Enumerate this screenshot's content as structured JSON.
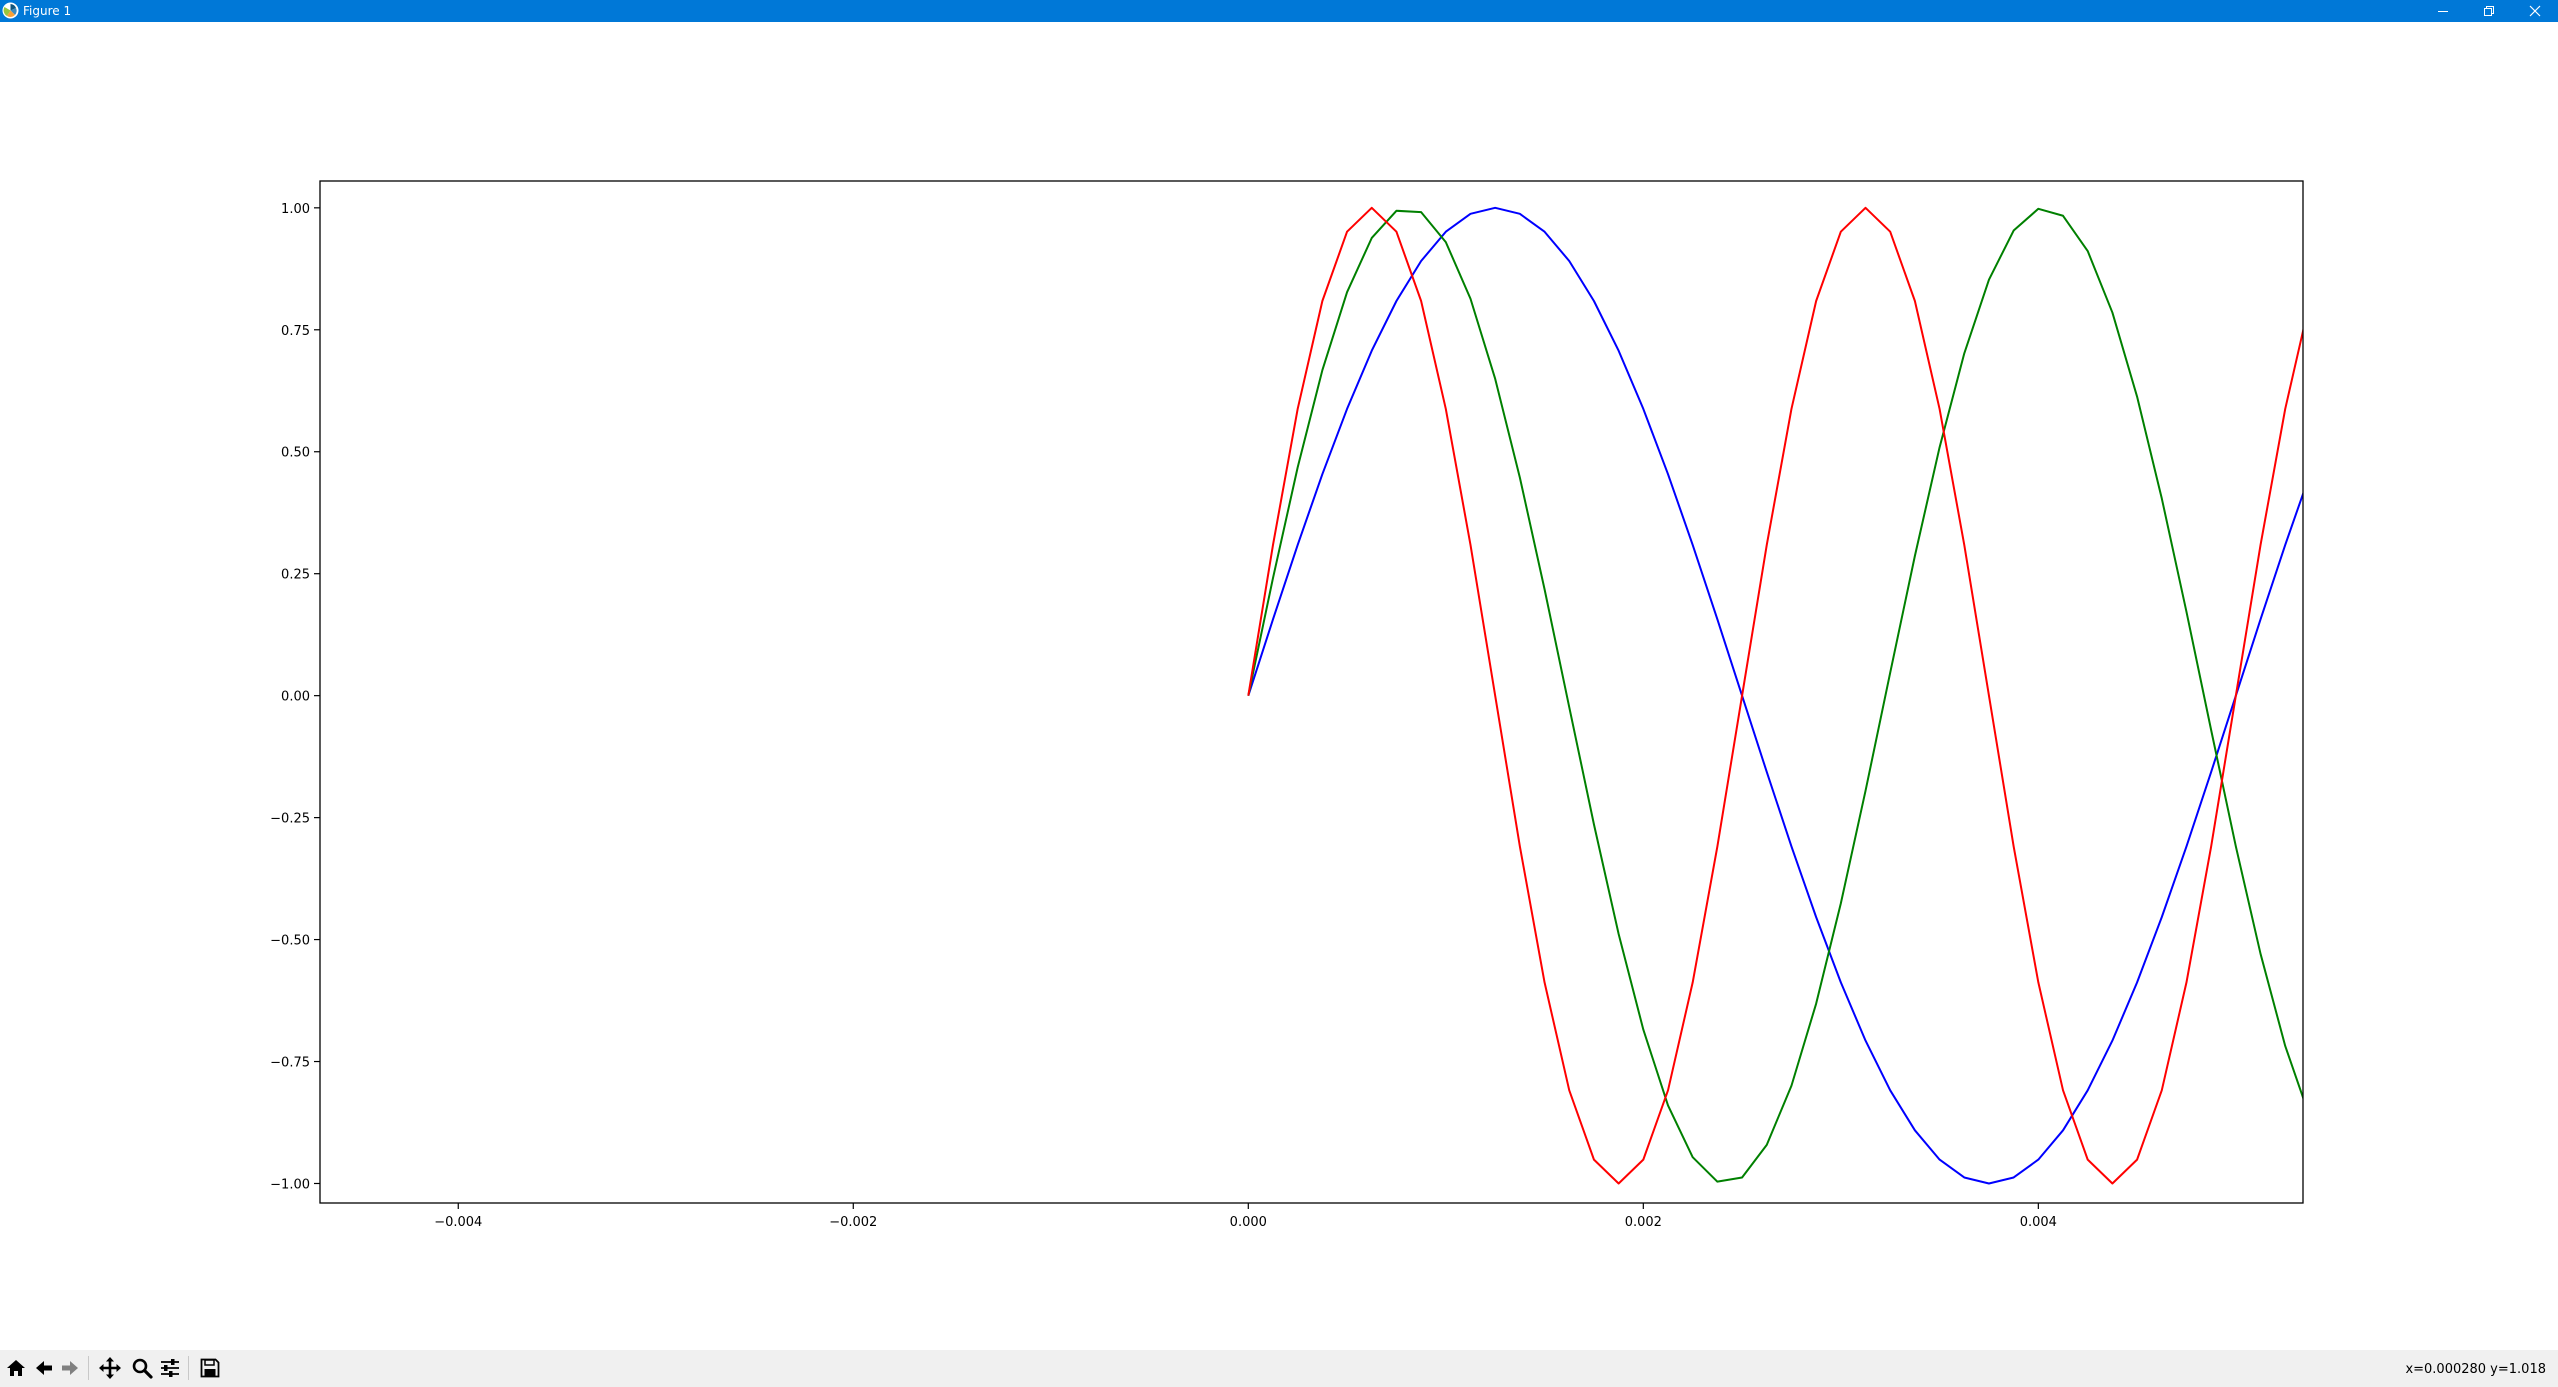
{
  "window": {
    "title": "Figure 1",
    "icons": {
      "app": "matplotlib-icon",
      "minimize": "minimize-icon",
      "maximize": "restore-icon",
      "close": "close-icon"
    }
  },
  "toolbar": {
    "tools": [
      {
        "name": "home",
        "icon": "home-icon"
      },
      {
        "name": "back",
        "icon": "arrow-left-icon"
      },
      {
        "name": "forward",
        "icon": "arrow-right-icon"
      },
      {
        "name": "pan",
        "icon": "move-icon"
      },
      {
        "name": "zoom",
        "icon": "magnifier-icon"
      },
      {
        "name": "subplots",
        "icon": "sliders-icon"
      },
      {
        "name": "save",
        "icon": "floppy-disk-icon"
      }
    ],
    "coordinates": "x=0.000280 y=1.018"
  },
  "chart_data": {
    "type": "line",
    "title": "",
    "xlabel": "",
    "ylabel": "",
    "xlim": [
      -0.0047,
      0.00534
    ],
    "ylim": [
      -1.04,
      1.055
    ],
    "x_ticks": [
      -0.004,
      -0.002,
      0.0,
      0.002,
      0.004
    ],
    "x_tick_labels": [
      "−0.004",
      "−0.002",
      "0.000",
      "0.002",
      "0.004"
    ],
    "y_ticks": [
      1.0,
      0.75,
      0.5,
      0.25,
      0.0,
      -0.25,
      -0.5,
      -0.75,
      -1.0
    ],
    "y_tick_labels": [
      "1.00",
      "0.75",
      "0.50",
      "0.25",
      "0.00",
      "−0.25",
      "−0.50",
      "−0.75",
      "−1.00"
    ],
    "grid": false,
    "legend": "none",
    "x_start": 0.0,
    "x_step": 0.000125,
    "series": [
      {
        "color": "#0000ff",
        "frequency_hz": 200,
        "function": "sin"
      },
      {
        "color": "#008000",
        "frequency_hz": 310,
        "function": "sin"
      },
      {
        "color": "#ff0000",
        "frequency_hz": 400,
        "function": "sin"
      }
    ]
  }
}
